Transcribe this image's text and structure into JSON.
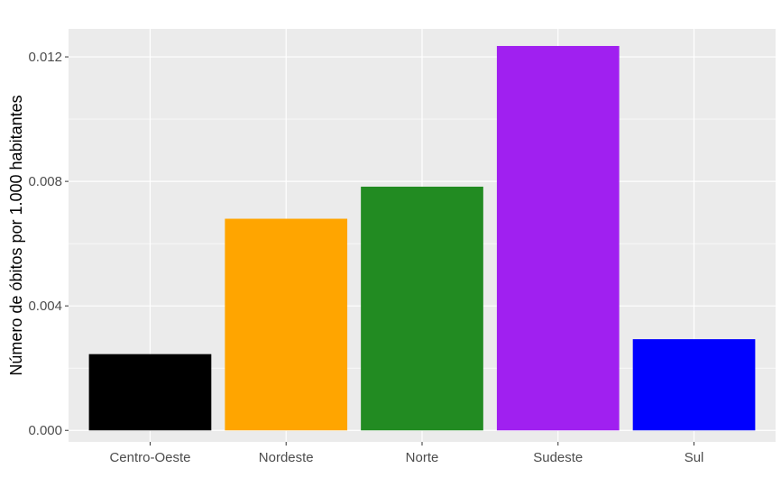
{
  "chart_data": {
    "type": "bar",
    "categories": [
      "Centro-Oeste",
      "Nordeste",
      "Norte",
      "Sudeste",
      "Sul"
    ],
    "values": [
      0.00245,
      0.0068,
      0.00783,
      0.01235,
      0.00293
    ],
    "colors": [
      "#000000",
      "#FFA500",
      "#228B22",
      "#A020F0",
      "#0000FF"
    ],
    "xlabel": "",
    "ylabel": "Número de óbitos por 1.000 habitantes",
    "ylim": [
      -0.00037,
      0.0129
    ],
    "yticks": [
      0,
      0.004,
      0.008,
      0.012
    ],
    "ytick_labels": [
      "0.000",
      "0.004",
      "0.008",
      "0.012"
    ],
    "grid": true,
    "legend": "none",
    "panel_background": "#EBEBEB",
    "grid_color": "#FFFFFF"
  }
}
